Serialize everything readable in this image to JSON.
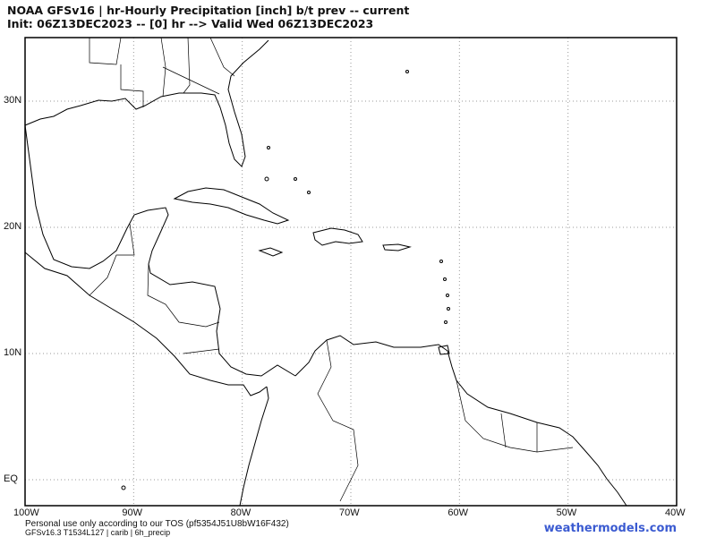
{
  "header": {
    "line1": "NOAA GFSv16 |  hr-Hourly Precipitation [inch] b/t prev -- current",
    "line2": "Init: 06Z13DEC2023 -- [0] hr --> Valid Wed 06Z13DEC2023"
  },
  "map": {
    "lat_labels": [
      "30N",
      "20N",
      "10N",
      "EQ"
    ],
    "lon_labels": [
      "100W",
      "90W",
      "80W",
      "70W",
      "60W",
      "50W",
      "40W"
    ],
    "grid": "dotted",
    "lat_range": [
      -2,
      35
    ],
    "lon_range": [
      -100,
      -40
    ]
  },
  "footer": {
    "tos": "Personal use only according to our TOS (pf5354J51U8bW16F432)",
    "model": "GFSv16.3 T1534L127 | carib | 6h_precip",
    "brand": "weathermodels.com",
    "brand_color": "#3b5bd1"
  }
}
